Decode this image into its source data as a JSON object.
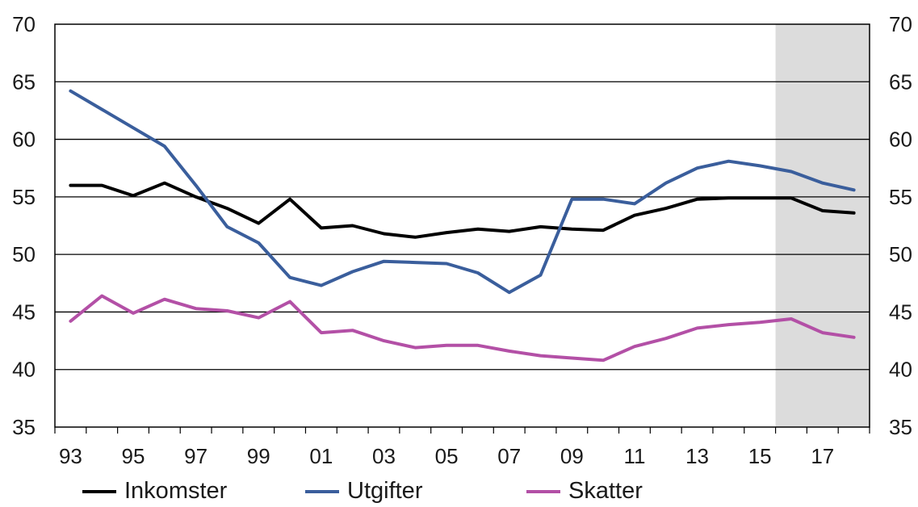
{
  "chart_data": {
    "type": "line",
    "title": "",
    "xlabel": "",
    "ylabel": "",
    "x": [
      1993,
      1994,
      1995,
      1996,
      1997,
      1998,
      1999,
      2000,
      2001,
      2002,
      2003,
      2004,
      2005,
      2006,
      2007,
      2008,
      2009,
      2010,
      2011,
      2012,
      2013,
      2014,
      2015,
      2016,
      2017,
      2018
    ],
    "x_tick_labels": [
      "93",
      "95",
      "97",
      "99",
      "01",
      "03",
      "05",
      "07",
      "09",
      "11",
      "13",
      "15",
      "17"
    ],
    "x_tick_years": [
      1993,
      1995,
      1997,
      1999,
      2001,
      2003,
      2005,
      2007,
      2009,
      2011,
      2013,
      2015,
      2017
    ],
    "ylim": [
      35,
      70
    ],
    "y_ticks": [
      35,
      40,
      45,
      50,
      55,
      60,
      65,
      70
    ],
    "grid": true,
    "forecast_shade": {
      "from": 2015.5,
      "to": 2018.5,
      "color": "#dcdcdc"
    },
    "series": [
      {
        "name": "Inkomster",
        "color": "#000000",
        "values": [
          56.0,
          56.0,
          55.1,
          56.2,
          55.0,
          54.0,
          52.7,
          54.8,
          52.3,
          52.5,
          51.8,
          51.5,
          51.9,
          52.2,
          52.0,
          52.4,
          52.2,
          52.1,
          53.4,
          54.0,
          54.8,
          54.9,
          54.9,
          54.9,
          53.8,
          53.6
        ]
      },
      {
        "name": "Utgifter",
        "color": "#3a5e9c",
        "values": [
          64.2,
          62.6,
          61.0,
          59.4,
          56.0,
          52.4,
          51.0,
          48.0,
          47.3,
          48.5,
          49.4,
          49.3,
          49.2,
          48.4,
          46.7,
          48.2,
          54.8,
          54.8,
          54.4,
          56.2,
          57.5,
          58.1,
          57.7,
          57.2,
          56.2,
          55.6
        ]
      },
      {
        "name": "Skatter",
        "color": "#b350a6",
        "values": [
          44.2,
          46.4,
          44.9,
          46.1,
          45.3,
          45.1,
          44.5,
          45.9,
          43.2,
          43.4,
          42.5,
          41.9,
          42.1,
          42.1,
          41.6,
          41.2,
          41.0,
          40.8,
          42.0,
          42.7,
          43.6,
          43.9,
          44.1,
          44.4,
          43.2,
          42.8
        ]
      }
    ]
  }
}
